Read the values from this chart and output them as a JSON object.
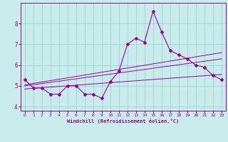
{
  "xlabel": "Windchill (Refroidissement éolien,°C)",
  "bg_color": "#c8ecec",
  "line_color": "#990099",
  "grid_color": "#99cccc",
  "x_values": [
    0,
    1,
    2,
    3,
    4,
    5,
    6,
    7,
    8,
    9,
    10,
    11,
    12,
    13,
    14,
    15,
    16,
    17,
    18,
    19,
    20,
    21,
    22,
    23
  ],
  "y_values": [
    5.3,
    4.9,
    4.9,
    4.6,
    4.6,
    5.0,
    5.0,
    4.6,
    4.6,
    4.4,
    5.2,
    5.7,
    7.0,
    7.3,
    7.1,
    8.6,
    7.6,
    6.7,
    6.5,
    6.3,
    6.0,
    5.9,
    5.5,
    5.3
  ],
  "ylim": [
    3.8,
    9.0
  ],
  "xlim": [
    -0.5,
    23.5
  ],
  "yticks": [
    4,
    5,
    6,
    7,
    8
  ],
  "xticks": [
    0,
    1,
    2,
    3,
    4,
    5,
    6,
    7,
    8,
    9,
    10,
    11,
    12,
    13,
    14,
    15,
    16,
    17,
    18,
    19,
    20,
    21,
    22,
    23
  ],
  "trend1": [
    4.85,
    5.55
  ],
  "trend2": [
    5.0,
    6.3
  ],
  "trend3": [
    5.05,
    6.6
  ]
}
